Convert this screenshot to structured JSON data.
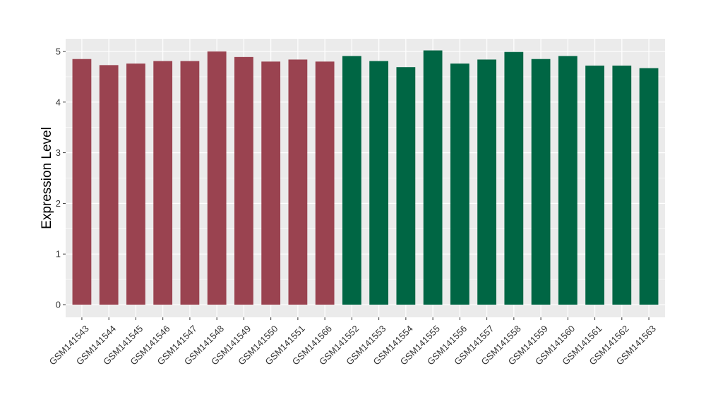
{
  "chart_data": {
    "type": "bar",
    "title": "",
    "xlabel": "",
    "ylabel": "Expression Level",
    "ylim": [
      -0.25,
      5.25
    ],
    "yticks": [
      0,
      1,
      2,
      3,
      4,
      5
    ],
    "grid": true,
    "legend": "none",
    "categories": [
      "GSM141543",
      "GSM141544",
      "GSM141545",
      "GSM141546",
      "GSM141547",
      "GSM141548",
      "GSM141549",
      "GSM141550",
      "GSM141551",
      "GSM141566",
      "GSM141552",
      "GSM141553",
      "GSM141554",
      "GSM141555",
      "GSM141556",
      "GSM141557",
      "GSM141558",
      "GSM141559",
      "GSM141560",
      "GSM141561",
      "GSM141562",
      "GSM141563"
    ],
    "values": [
      4.85,
      4.73,
      4.76,
      4.81,
      4.81,
      5.0,
      4.89,
      4.8,
      4.84,
      4.8,
      4.91,
      4.81,
      4.69,
      5.02,
      4.76,
      4.84,
      4.99,
      4.85,
      4.91,
      4.72,
      4.72,
      4.67
    ],
    "groups": [
      0,
      0,
      0,
      0,
      0,
      0,
      0,
      0,
      0,
      0,
      1,
      1,
      1,
      1,
      1,
      1,
      1,
      1,
      1,
      1,
      1,
      1
    ],
    "group_colors": [
      "#9a4350",
      "#006644"
    ],
    "panel_color": "#ebebeb",
    "grid_color": "#ffffff"
  }
}
